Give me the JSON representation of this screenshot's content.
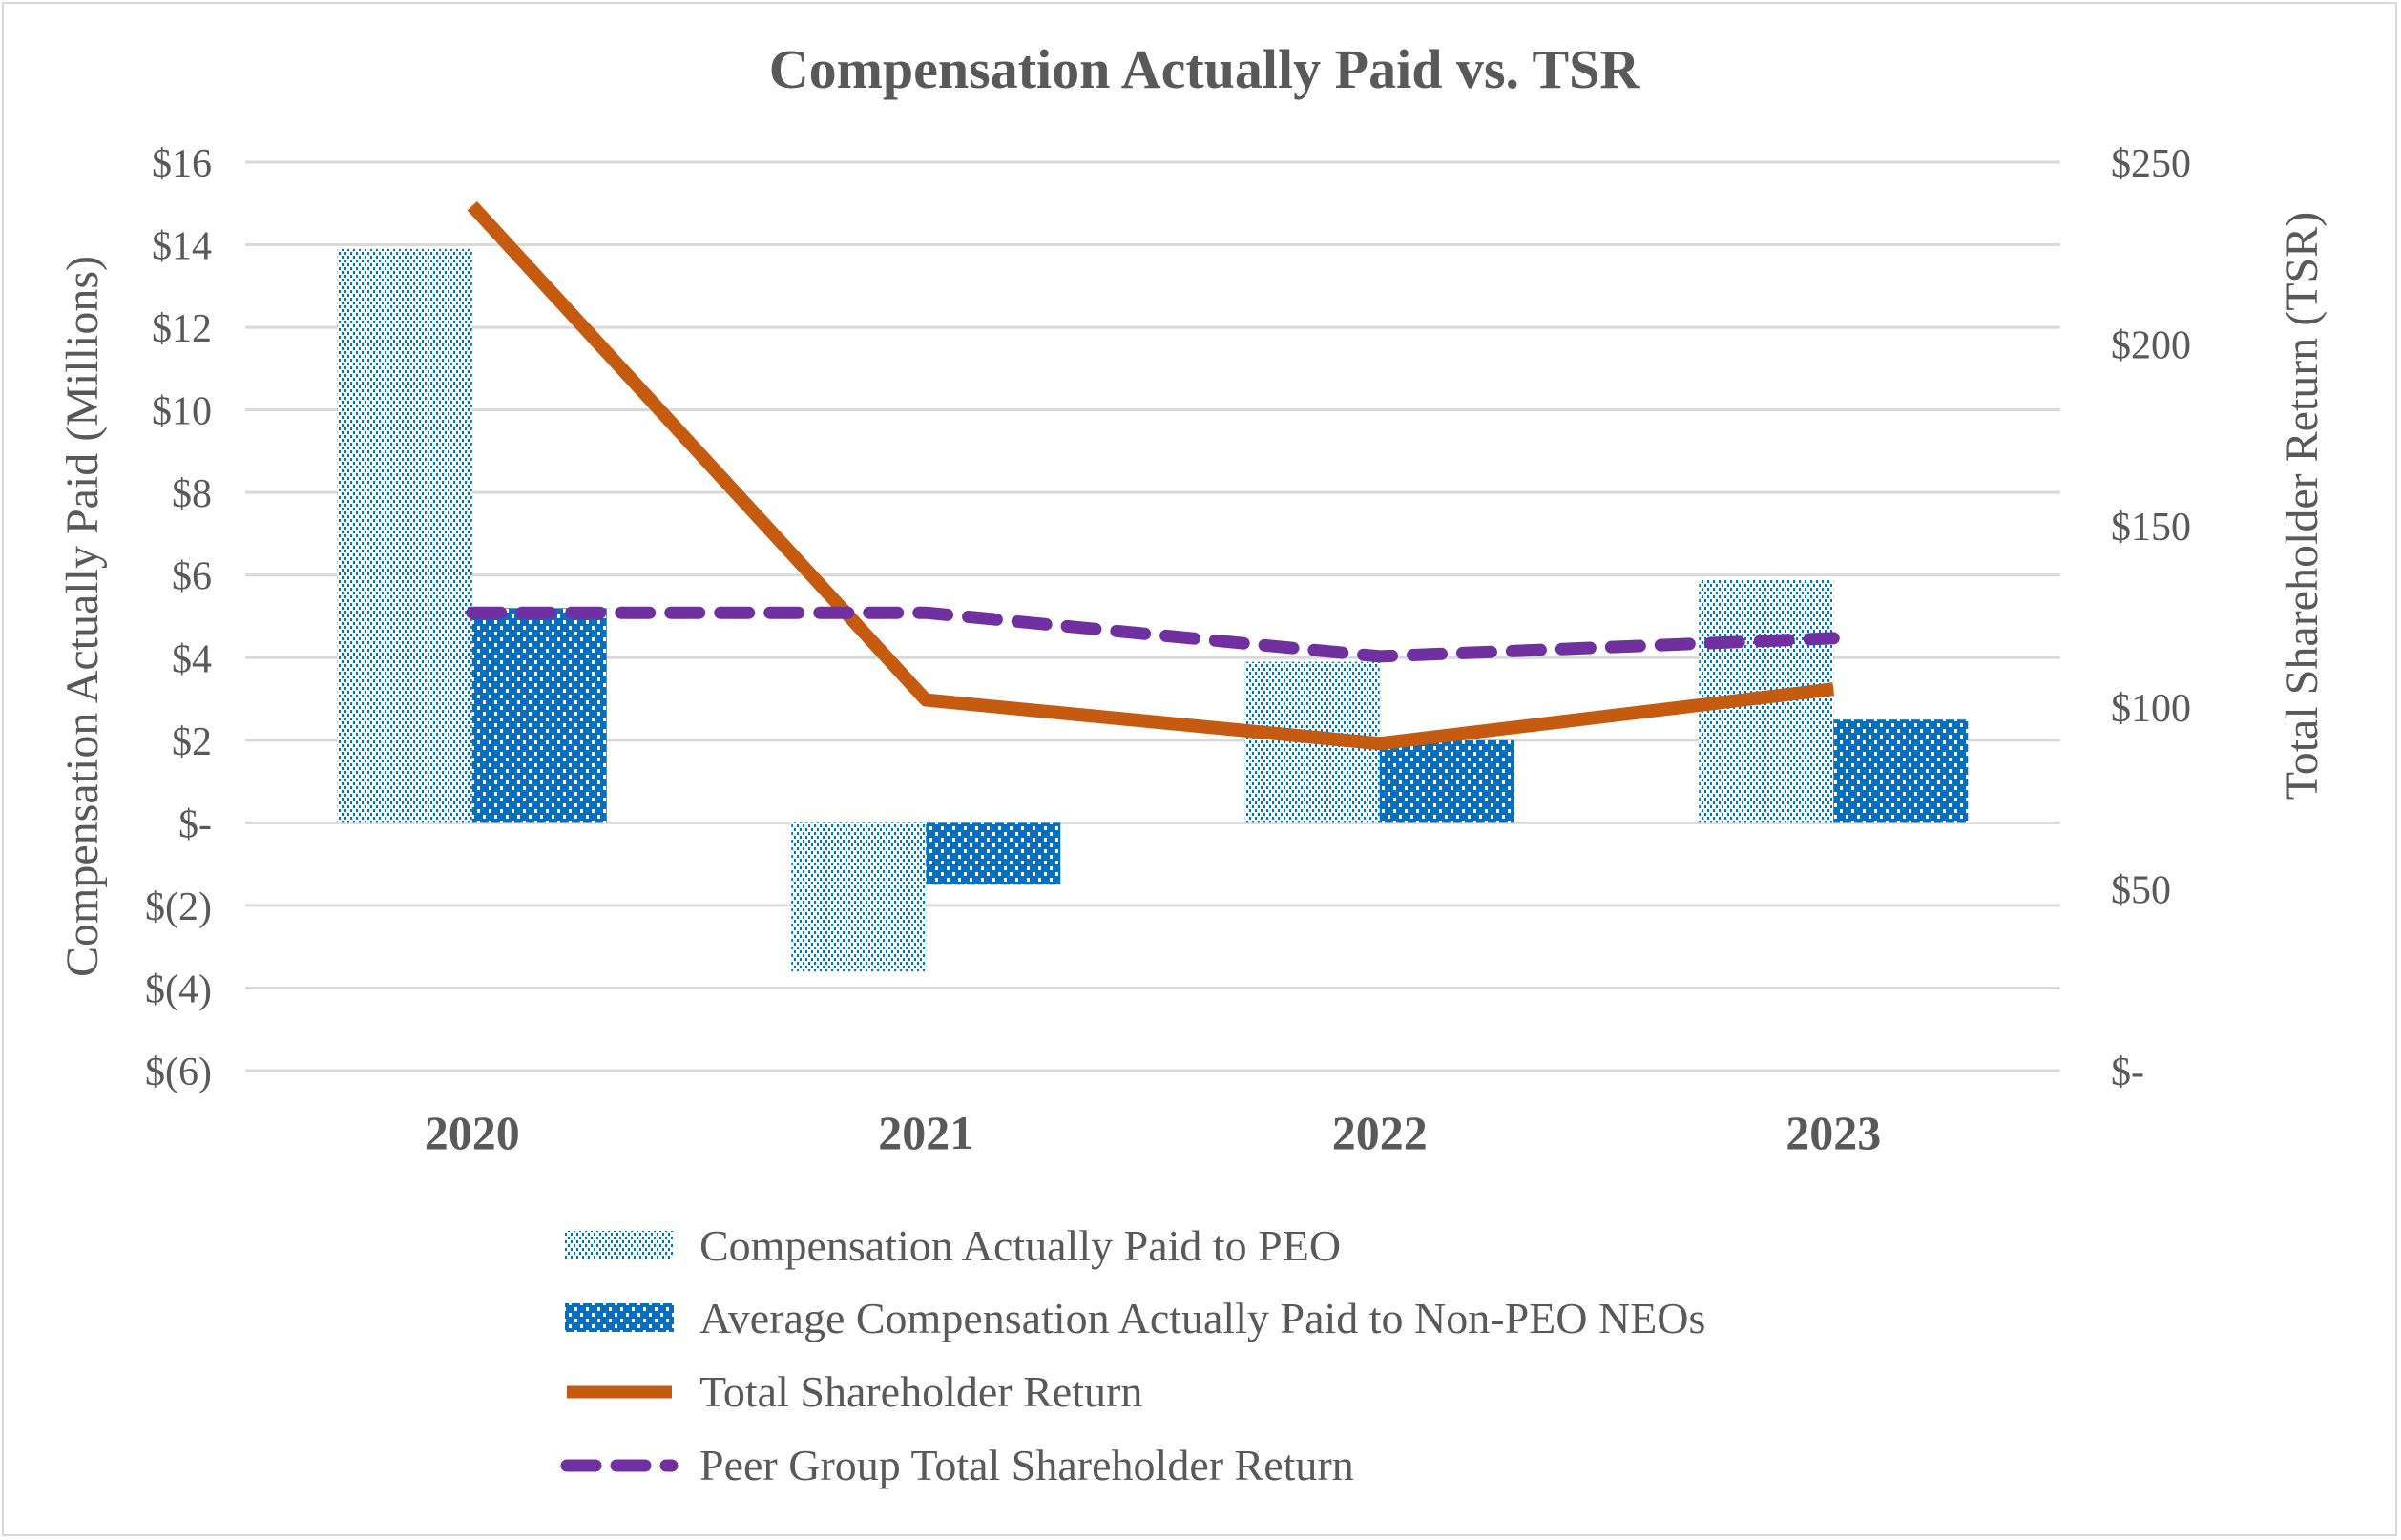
{
  "chart_data": {
    "type": "bar",
    "title": "Compensation Actually Paid vs. TSR",
    "categories": [
      "2020",
      "2021",
      "2022",
      "2023"
    ],
    "ylabel": "Compensation Actually Paid (Millions)",
    "y2label": "Total Shareholder Return (TSR)",
    "ylim": [
      -6,
      16
    ],
    "y2lim": [
      0,
      250
    ],
    "yticks": [
      16,
      14,
      12,
      10,
      8,
      6,
      4,
      2,
      0,
      -2,
      -4,
      -6
    ],
    "ytick_labels": [
      "$16",
      "$14",
      "$12",
      "$10",
      "$8",
      "$6",
      "$4",
      "$2",
      "$-",
      "$(2)",
      "$(4)",
      "$(6)"
    ],
    "y2ticks": [
      250,
      200,
      150,
      100,
      50,
      0
    ],
    "y2tick_labels": [
      "$250",
      "$200",
      "$150",
      "$100",
      "$50",
      "$-"
    ],
    "grid": true,
    "legend_position": "bottom",
    "series": [
      {
        "name": "Compensation Actually Paid to PEO",
        "type": "bar",
        "axis": "left",
        "color": "#0070c0",
        "pattern": "light-dots",
        "values": [
          13.9,
          -3.6,
          3.9,
          5.9
        ]
      },
      {
        "name": "Average Compensation Actually Paid to Non-PEO NEOs",
        "type": "bar",
        "axis": "left",
        "color": "#0070c0",
        "pattern": "dense-dots",
        "values": [
          5.2,
          -1.5,
          2.0,
          2.5
        ]
      },
      {
        "name": "Total Shareholder Return",
        "type": "line",
        "axis": "right",
        "color": "#c55a11",
        "dash": false,
        "values": [
          238,
          102,
          90,
          105
        ]
      },
      {
        "name": "Peer Group Total Shareholder Return",
        "type": "line",
        "axis": "right",
        "color": "#7030a0",
        "dash": true,
        "values": [
          126,
          126,
          114,
          119
        ]
      }
    ]
  }
}
